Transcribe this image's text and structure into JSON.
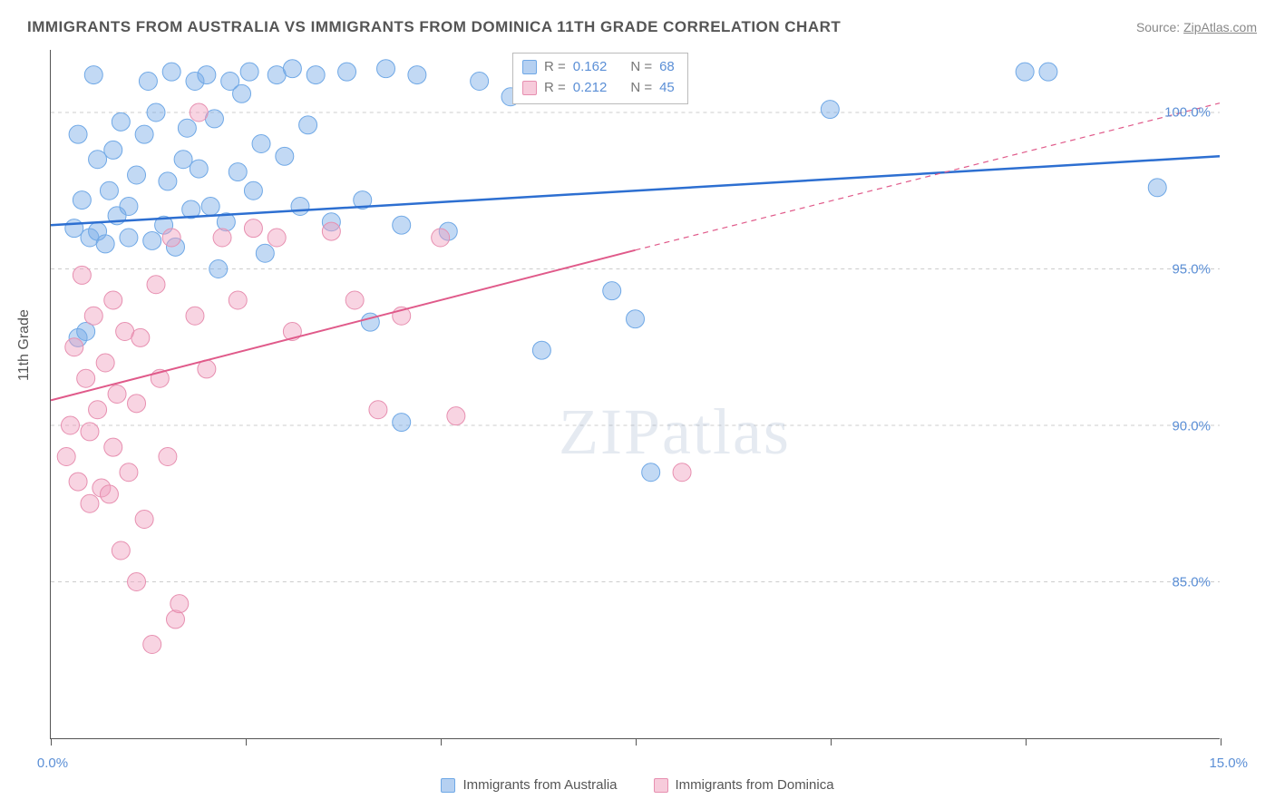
{
  "title": "IMMIGRANTS FROM AUSTRALIA VS IMMIGRANTS FROM DOMINICA 11TH GRADE CORRELATION CHART",
  "source_label": "Source: ",
  "source_name": "ZipAtlas.com",
  "y_axis_label": "11th Grade",
  "watermark_a": "ZIP",
  "watermark_b": "atlas",
  "chart": {
    "type": "scatter_with_regression",
    "background": "#ffffff",
    "grid_color": "#cccccc",
    "axis_color": "#555555",
    "xlim": [
      0,
      15
    ],
    "ylim": [
      80,
      102
    ],
    "y_ticks": [
      85,
      90,
      95,
      100
    ],
    "y_tick_labels": [
      "85.0%",
      "90.0%",
      "95.0%",
      "100.0%"
    ],
    "x_ticks": [
      0,
      2.5,
      5.0,
      7.5,
      10.0,
      12.5,
      15.0
    ],
    "x_tick_labels_shown": {
      "0": "0.0%",
      "15": "15.0%"
    },
    "series": [
      {
        "key": "australia",
        "label": "Immigrants from Australia",
        "color_fill": "rgba(120,170,230,0.45)",
        "color_stroke": "#6fa8e6",
        "trend_color": "#2d6fd1",
        "trend_width": 2.5,
        "R": "0.162",
        "N": "68",
        "trend": {
          "x1": 0,
          "y1": 96.4,
          "x2": 15,
          "y2": 98.6
        },
        "marker_radius": 10,
        "points": [
          [
            0.3,
            96.3
          ],
          [
            0.35,
            92.8
          ],
          [
            0.35,
            99.3
          ],
          [
            0.4,
            97.2
          ],
          [
            0.45,
            93.0
          ],
          [
            0.5,
            96.0
          ],
          [
            0.55,
            101.2
          ],
          [
            0.6,
            96.2
          ],
          [
            0.6,
            98.5
          ],
          [
            0.7,
            95.8
          ],
          [
            0.75,
            97.5
          ],
          [
            0.8,
            98.8
          ],
          [
            0.85,
            96.7
          ],
          [
            0.9,
            99.7
          ],
          [
            1.0,
            97.0
          ],
          [
            1.0,
            96.0
          ],
          [
            1.1,
            98.0
          ],
          [
            1.2,
            99.3
          ],
          [
            1.25,
            101.0
          ],
          [
            1.3,
            95.9
          ],
          [
            1.35,
            100.0
          ],
          [
            1.45,
            96.4
          ],
          [
            1.5,
            97.8
          ],
          [
            1.55,
            101.3
          ],
          [
            1.6,
            95.7
          ],
          [
            1.7,
            98.5
          ],
          [
            1.75,
            99.5
          ],
          [
            1.8,
            96.9
          ],
          [
            1.85,
            101.0
          ],
          [
            1.9,
            98.2
          ],
          [
            2.0,
            101.2
          ],
          [
            2.05,
            97.0
          ],
          [
            2.1,
            99.8
          ],
          [
            2.15,
            95.0
          ],
          [
            2.25,
            96.5
          ],
          [
            2.3,
            101.0
          ],
          [
            2.4,
            98.1
          ],
          [
            2.45,
            100.6
          ],
          [
            2.55,
            101.3
          ],
          [
            2.6,
            97.5
          ],
          [
            2.7,
            99.0
          ],
          [
            2.75,
            95.5
          ],
          [
            2.9,
            101.2
          ],
          [
            3.0,
            98.6
          ],
          [
            3.1,
            101.4
          ],
          [
            3.2,
            97.0
          ],
          [
            3.3,
            99.6
          ],
          [
            3.4,
            101.2
          ],
          [
            3.6,
            96.5
          ],
          [
            3.8,
            101.3
          ],
          [
            4.0,
            97.2
          ],
          [
            4.1,
            93.3
          ],
          [
            4.3,
            101.4
          ],
          [
            4.5,
            96.4
          ],
          [
            4.5,
            90.1
          ],
          [
            4.7,
            101.2
          ],
          [
            5.1,
            96.2
          ],
          [
            5.5,
            101.0
          ],
          [
            5.9,
            100.5
          ],
          [
            6.3,
            92.4
          ],
          [
            7.0,
            101.3
          ],
          [
            7.2,
            94.3
          ],
          [
            7.5,
            93.4
          ],
          [
            7.7,
            88.5
          ],
          [
            10.0,
            100.1
          ],
          [
            12.5,
            101.3
          ],
          [
            12.8,
            101.3
          ],
          [
            14.2,
            97.6
          ]
        ]
      },
      {
        "key": "dominica",
        "label": "Immigrants from Dominica",
        "color_fill": "rgba(240,160,190,0.45)",
        "color_stroke": "#e78fb0",
        "trend_color": "#e05a8a",
        "trend_width": 2,
        "R": "0.212",
        "N": "45",
        "trend": {
          "x1": 0,
          "y1": 90.8,
          "x2": 7.5,
          "y2": 95.6
        },
        "trend_dashed_extension": {
          "x1": 7.5,
          "y1": 95.6,
          "x2": 15,
          "y2": 100.3
        },
        "marker_radius": 10,
        "points": [
          [
            0.2,
            89.0
          ],
          [
            0.25,
            90.0
          ],
          [
            0.3,
            92.5
          ],
          [
            0.35,
            88.2
          ],
          [
            0.4,
            94.8
          ],
          [
            0.45,
            91.5
          ],
          [
            0.5,
            89.8
          ],
          [
            0.5,
            87.5
          ],
          [
            0.55,
            93.5
          ],
          [
            0.6,
            90.5
          ],
          [
            0.65,
            88.0
          ],
          [
            0.7,
            92.0
          ],
          [
            0.75,
            87.8
          ],
          [
            0.8,
            94.0
          ],
          [
            0.8,
            89.3
          ],
          [
            0.85,
            91.0
          ],
          [
            0.9,
            86.0
          ],
          [
            0.95,
            93.0
          ],
          [
            1.0,
            88.5
          ],
          [
            1.1,
            90.7
          ],
          [
            1.1,
            85.0
          ],
          [
            1.15,
            92.8
          ],
          [
            1.2,
            87.0
          ],
          [
            1.3,
            83.0
          ],
          [
            1.35,
            94.5
          ],
          [
            1.4,
            91.5
          ],
          [
            1.5,
            89.0
          ],
          [
            1.55,
            96.0
          ],
          [
            1.6,
            83.8
          ],
          [
            1.65,
            84.3
          ],
          [
            1.85,
            93.5
          ],
          [
            1.9,
            100.0
          ],
          [
            2.0,
            91.8
          ],
          [
            2.2,
            96.0
          ],
          [
            2.4,
            94.0
          ],
          [
            2.6,
            96.3
          ],
          [
            2.9,
            96.0
          ],
          [
            3.1,
            93.0
          ],
          [
            3.6,
            96.2
          ],
          [
            3.9,
            94.0
          ],
          [
            4.2,
            90.5
          ],
          [
            4.5,
            93.5
          ],
          [
            5.0,
            96.0
          ],
          [
            5.2,
            90.3
          ],
          [
            8.1,
            88.5
          ]
        ]
      }
    ],
    "stats_box": {
      "row_labels": {
        "R": "R =",
        "N": "N ="
      }
    },
    "legend_swatch_bg": {
      "australia": "rgba(120,170,230,0.55)",
      "dominica": "rgba(240,160,190,0.55)"
    }
  }
}
